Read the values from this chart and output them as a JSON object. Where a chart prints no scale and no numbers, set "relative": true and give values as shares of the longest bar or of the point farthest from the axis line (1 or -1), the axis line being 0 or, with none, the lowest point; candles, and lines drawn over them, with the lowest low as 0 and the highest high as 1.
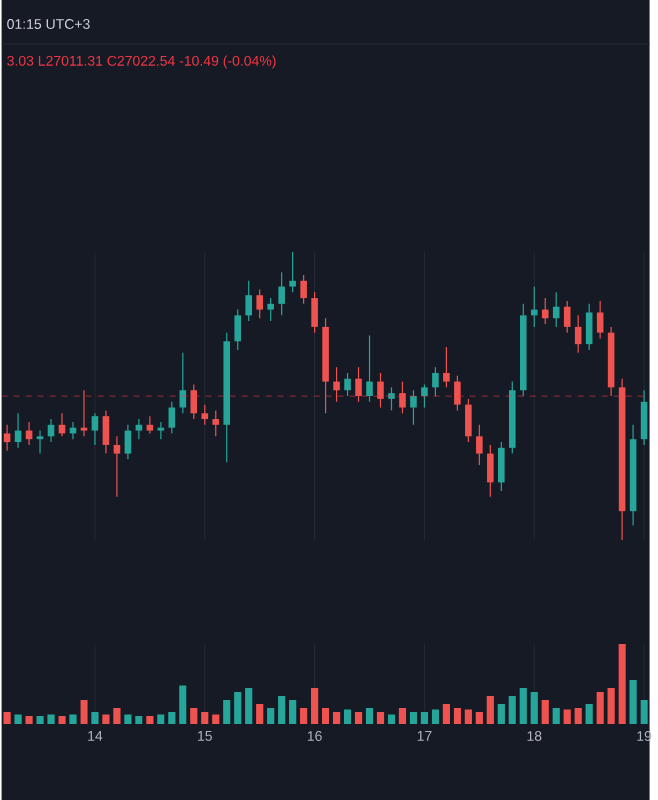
{
  "chart_data": [
    {
      "type": "candlestick",
      "relative": true,
      "xlim": [
        13.15,
        19.05
      ],
      "xticks": [
        14,
        15,
        16,
        17,
        18,
        19
      ],
      "grid": "x",
      "tick_labels": false,
      "annotations": [
        "01:15 UTC+3",
        "3.03 L27011.31 C27022.54 -10.49 (-0.04%)"
      ],
      "ref_lines": [
        {
          "axis": "y",
          "value": 0.5,
          "color": "#f23645",
          "line_style": "dashed"
        }
      ],
      "x": [
        13.2,
        13.3,
        13.4,
        13.5,
        13.6,
        13.7,
        13.8,
        13.9,
        14.0,
        14.1,
        14.2,
        14.3,
        14.4,
        14.5,
        14.6,
        14.7,
        14.8,
        14.9,
        15.0,
        15.1,
        15.2,
        15.3,
        15.4,
        15.5,
        15.6,
        15.7,
        15.8,
        15.9,
        16.0,
        16.1,
        16.2,
        16.3,
        16.4,
        16.5,
        16.6,
        16.7,
        16.8,
        16.9,
        17.0,
        17.1,
        17.2,
        17.3,
        17.4,
        17.5,
        17.6,
        17.7,
        17.8,
        17.9,
        18.0,
        18.1,
        18.2,
        18.3,
        18.4,
        18.5,
        18.6,
        18.7,
        18.8,
        18.9,
        19.0
      ],
      "ohlc": [
        [
          0.37,
          0.4,
          0.31,
          0.34
        ],
        [
          0.34,
          0.44,
          0.32,
          0.38
        ],
        [
          0.38,
          0.41,
          0.33,
          0.35
        ],
        [
          0.35,
          0.38,
          0.3,
          0.36
        ],
        [
          0.36,
          0.42,
          0.34,
          0.4
        ],
        [
          0.4,
          0.44,
          0.36,
          0.37
        ],
        [
          0.37,
          0.41,
          0.35,
          0.39
        ],
        [
          0.39,
          0.52,
          0.36,
          0.38
        ],
        [
          0.38,
          0.44,
          0.33,
          0.43
        ],
        [
          0.43,
          0.45,
          0.3,
          0.33
        ],
        [
          0.33,
          0.36,
          0.15,
          0.3
        ],
        [
          0.3,
          0.4,
          0.28,
          0.38
        ],
        [
          0.38,
          0.42,
          0.35,
          0.4
        ],
        [
          0.4,
          0.43,
          0.37,
          0.38
        ],
        [
          0.38,
          0.41,
          0.35,
          0.39
        ],
        [
          0.39,
          0.48,
          0.37,
          0.46
        ],
        [
          0.46,
          0.65,
          0.44,
          0.52
        ],
        [
          0.52,
          0.54,
          0.42,
          0.44
        ],
        [
          0.44,
          0.47,
          0.4,
          0.42
        ],
        [
          0.42,
          0.45,
          0.36,
          0.4
        ],
        [
          0.4,
          0.72,
          0.27,
          0.69
        ],
        [
          0.69,
          0.8,
          0.66,
          0.78
        ],
        [
          0.78,
          0.9,
          0.76,
          0.85
        ],
        [
          0.85,
          0.87,
          0.77,
          0.8
        ],
        [
          0.8,
          0.84,
          0.76,
          0.82
        ],
        [
          0.82,
          0.93,
          0.78,
          0.88
        ],
        [
          0.88,
          1.0,
          0.86,
          0.9
        ],
        [
          0.9,
          0.92,
          0.82,
          0.84
        ],
        [
          0.84,
          0.86,
          0.72,
          0.74
        ],
        [
          0.74,
          0.77,
          0.44,
          0.55
        ],
        [
          0.55,
          0.6,
          0.48,
          0.52
        ],
        [
          0.52,
          0.58,
          0.5,
          0.56
        ],
        [
          0.56,
          0.6,
          0.48,
          0.5
        ],
        [
          0.5,
          0.71,
          0.48,
          0.55
        ],
        [
          0.55,
          0.58,
          0.46,
          0.49
        ],
        [
          0.49,
          0.53,
          0.45,
          0.51
        ],
        [
          0.51,
          0.55,
          0.44,
          0.46
        ],
        [
          0.46,
          0.52,
          0.4,
          0.5
        ],
        [
          0.5,
          0.54,
          0.46,
          0.53
        ],
        [
          0.53,
          0.6,
          0.5,
          0.58
        ],
        [
          0.58,
          0.67,
          0.53,
          0.55
        ],
        [
          0.55,
          0.57,
          0.45,
          0.47
        ],
        [
          0.47,
          0.49,
          0.34,
          0.36
        ],
        [
          0.36,
          0.4,
          0.26,
          0.3
        ],
        [
          0.3,
          0.33,
          0.15,
          0.2
        ],
        [
          0.2,
          0.34,
          0.17,
          0.32
        ],
        [
          0.32,
          0.55,
          0.3,
          0.52
        ],
        [
          0.52,
          0.82,
          0.5,
          0.78
        ],
        [
          0.78,
          0.88,
          0.74,
          0.8
        ],
        [
          0.8,
          0.84,
          0.75,
          0.77
        ],
        [
          0.77,
          0.86,
          0.74,
          0.81
        ],
        [
          0.81,
          0.83,
          0.72,
          0.74
        ],
        [
          0.74,
          0.78,
          0.65,
          0.68
        ],
        [
          0.68,
          0.82,
          0.66,
          0.79
        ],
        [
          0.79,
          0.83,
          0.7,
          0.72
        ],
        [
          0.72,
          0.74,
          0.5,
          0.53
        ],
        [
          0.53,
          0.56,
          0.0,
          0.1
        ],
        [
          0.1,
          0.4,
          0.05,
          0.35
        ],
        [
          0.35,
          0.52,
          0.33,
          0.48
        ]
      ],
      "colors": [
        "#ef5350",
        "#26a69a",
        "#ef5350",
        "#26a69a",
        "#26a69a",
        "#ef5350",
        "#26a69a",
        "#ef5350",
        "#26a69a",
        "#ef5350",
        "#ef5350",
        "#26a69a",
        "#26a69a",
        "#ef5350",
        "#26a69a",
        "#26a69a",
        "#26a69a",
        "#ef5350",
        "#ef5350",
        "#ef5350",
        "#26a69a",
        "#26a69a",
        "#26a69a",
        "#ef5350",
        "#26a69a",
        "#26a69a",
        "#26a69a",
        "#ef5350",
        "#ef5350",
        "#ef5350",
        "#ef5350",
        "#26a69a",
        "#ef5350",
        "#26a69a",
        "#ef5350",
        "#26a69a",
        "#ef5350",
        "#26a69a",
        "#26a69a",
        "#26a69a",
        "#ef5350",
        "#ef5350",
        "#ef5350",
        "#ef5350",
        "#ef5350",
        "#26a69a",
        "#26a69a",
        "#26a69a",
        "#26a69a",
        "#ef5350",
        "#26a69a",
        "#ef5350",
        "#ef5350",
        "#26a69a",
        "#ef5350",
        "#ef5350",
        "#ef5350",
        "#26a69a",
        "#26a69a"
      ]
    },
    {
      "type": "bar",
      "relative": true,
      "xlim": [
        13.15,
        19.05
      ],
      "xticks": [
        14,
        15,
        16,
        17,
        18,
        19
      ],
      "grid": "x",
      "tick_labels": "x",
      "x": [
        13.2,
        13.3,
        13.4,
        13.5,
        13.6,
        13.7,
        13.8,
        13.9,
        14.0,
        14.1,
        14.2,
        14.3,
        14.4,
        14.5,
        14.6,
        14.7,
        14.8,
        14.9,
        15.0,
        15.1,
        15.2,
        15.3,
        15.4,
        15.5,
        15.6,
        15.7,
        15.8,
        15.9,
        16.0,
        16.1,
        16.2,
        16.3,
        16.4,
        16.5,
        16.6,
        16.7,
        16.8,
        16.9,
        17.0,
        17.1,
        17.2,
        17.3,
        17.4,
        17.5,
        17.6,
        17.7,
        17.8,
        17.9,
        18.0,
        18.1,
        18.2,
        18.3,
        18.4,
        18.5,
        18.6,
        18.7,
        18.8,
        18.9,
        19.0
      ],
      "values": [
        0.15,
        0.12,
        0.1,
        0.1,
        0.12,
        0.1,
        0.12,
        0.3,
        0.15,
        0.12,
        0.2,
        0.12,
        0.1,
        0.1,
        0.12,
        0.15,
        0.48,
        0.2,
        0.15,
        0.12,
        0.3,
        0.4,
        0.45,
        0.25,
        0.2,
        0.35,
        0.3,
        0.2,
        0.45,
        0.2,
        0.15,
        0.18,
        0.15,
        0.2,
        0.15,
        0.12,
        0.2,
        0.15,
        0.15,
        0.18,
        0.25,
        0.2,
        0.18,
        0.15,
        0.35,
        0.25,
        0.35,
        0.45,
        0.4,
        0.3,
        0.2,
        0.18,
        0.2,
        0.25,
        0.4,
        0.45,
        1.0,
        0.55,
        0.3
      ],
      "colors": [
        "#ef5350",
        "#26a69a",
        "#ef5350",
        "#26a69a",
        "#26a69a",
        "#ef5350",
        "#26a69a",
        "#ef5350",
        "#26a69a",
        "#ef5350",
        "#ef5350",
        "#26a69a",
        "#26a69a",
        "#ef5350",
        "#26a69a",
        "#26a69a",
        "#26a69a",
        "#ef5350",
        "#ef5350",
        "#ef5350",
        "#26a69a",
        "#26a69a",
        "#26a69a",
        "#ef5350",
        "#26a69a",
        "#26a69a",
        "#26a69a",
        "#ef5350",
        "#ef5350",
        "#ef5350",
        "#ef5350",
        "#26a69a",
        "#ef5350",
        "#26a69a",
        "#ef5350",
        "#26a69a",
        "#ef5350",
        "#26a69a",
        "#26a69a",
        "#26a69a",
        "#ef5350",
        "#ef5350",
        "#ef5350",
        "#ef5350",
        "#ef5350",
        "#26a69a",
        "#26a69a",
        "#26a69a",
        "#26a69a",
        "#ef5350",
        "#26a69a",
        "#ef5350",
        "#ef5350",
        "#26a69a",
        "#ef5350",
        "#ef5350",
        "#ef5350",
        "#26a69a",
        "#26a69a"
      ]
    }
  ]
}
